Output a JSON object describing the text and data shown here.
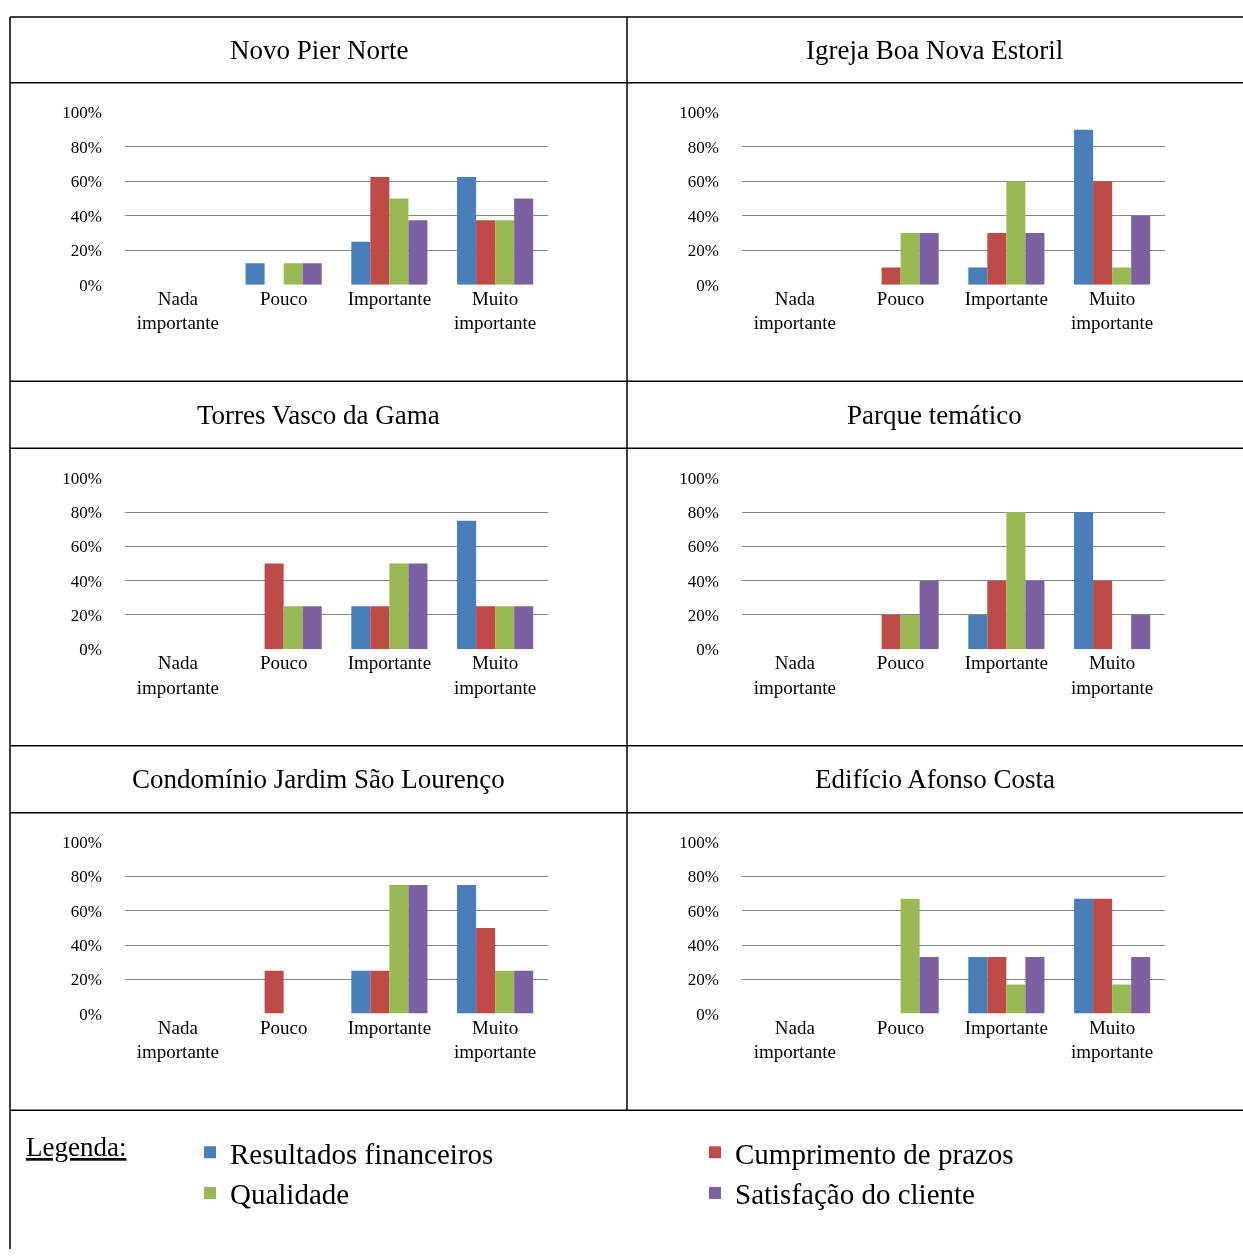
{
  "chart_data": [
    {
      "type": "bar",
      "title": "Novo Pier Norte",
      "categories": [
        "Nada\nimportante",
        "Pouco",
        "Importante",
        "Muito\nimportante"
      ],
      "ylim": [
        0,
        100
      ],
      "yticks": [
        {
          "value": 0,
          "label": "0%"
        },
        {
          "value": 20,
          "label": "20%"
        },
        {
          "value": 40,
          "label": "40%"
        },
        {
          "value": 60,
          "label": "60%"
        },
        {
          "value": 80,
          "label": "80%"
        },
        {
          "value": 100,
          "label": "100%"
        }
      ],
      "grid": "y",
      "legend": "bottom",
      "legend_title": "Legenda:",
      "series": [
        {
          "name": "Resultados financeiros",
          "color": "#4a7ebb",
          "values": [
            0,
            12.5,
            25,
            62.5
          ]
        },
        {
          "name": "Cumprimento de prazos",
          "color": "#be4b48",
          "values": [
            0,
            0,
            62.5,
            37.5
          ]
        },
        {
          "name": "Qualidade",
          "color": "#98b954",
          "values": [
            0,
            12.5,
            50,
            37.5
          ]
        },
        {
          "name": "Satisfação do cliente",
          "color": "#7d60a0",
          "values": [
            0,
            12.5,
            37.5,
            50
          ]
        }
      ]
    },
    {
      "type": "bar",
      "title": "Igreja Boa Nova Estoril",
      "categories": [
        "Nada\nimportante",
        "Pouco",
        "Importante",
        "Muito\nimportante"
      ],
      "ylim": [
        0,
        100
      ],
      "yticks": [
        {
          "value": 0,
          "label": "0%"
        },
        {
          "value": 20,
          "label": "20%"
        },
        {
          "value": 40,
          "label": "40%"
        },
        {
          "value": 60,
          "label": "60%"
        },
        {
          "value": 80,
          "label": "80%"
        },
        {
          "value": 100,
          "label": "100%"
        }
      ],
      "grid": "y",
      "legend": "bottom",
      "series": [
        {
          "name": "Resultados financeiros",
          "color": "#4a7ebb",
          "values": [
            0,
            0,
            10,
            90
          ]
        },
        {
          "name": "Cumprimento de prazos",
          "color": "#be4b48",
          "values": [
            0,
            10,
            30,
            60
          ]
        },
        {
          "name": "Qualidade",
          "color": "#98b954",
          "values": [
            0,
            30,
            60,
            10
          ]
        },
        {
          "name": "Satisfação do cliente",
          "color": "#7d60a0",
          "values": [
            0,
            30,
            30,
            40
          ]
        }
      ]
    },
    {
      "type": "bar",
      "title": "Torres Vasco da Gama",
      "categories": [
        "Nada\nimportante",
        "Pouco",
        "Importante",
        "Muito\nimportante"
      ],
      "ylim": [
        0,
        100
      ],
      "yticks": [
        {
          "value": 0,
          "label": "0%"
        },
        {
          "value": 20,
          "label": "20%"
        },
        {
          "value": 40,
          "label": "40%"
        },
        {
          "value": 60,
          "label": "60%"
        },
        {
          "value": 80,
          "label": "80%"
        },
        {
          "value": 100,
          "label": "100%"
        }
      ],
      "grid": "y",
      "legend": "bottom",
      "series": [
        {
          "name": "Resultados financeiros",
          "color": "#4a7ebb",
          "values": [
            0,
            0,
            25,
            75
          ]
        },
        {
          "name": "Cumprimento de prazos",
          "color": "#be4b48",
          "values": [
            0,
            50,
            25,
            25
          ]
        },
        {
          "name": "Qualidade",
          "color": "#98b954",
          "values": [
            0,
            25,
            50,
            25
          ]
        },
        {
          "name": "Satisfação do cliente",
          "color": "#7d60a0",
          "values": [
            0,
            25,
            50,
            25
          ]
        }
      ]
    },
    {
      "type": "bar",
      "title": "Parque temático",
      "categories": [
        "Nada\nimportante",
        "Pouco",
        "Importante",
        "Muito\nimportante"
      ],
      "ylim": [
        0,
        100
      ],
      "yticks": [
        {
          "value": 0,
          "label": "0%"
        },
        {
          "value": 20,
          "label": "20%"
        },
        {
          "value": 40,
          "label": "40%"
        },
        {
          "value": 60,
          "label": "60%"
        },
        {
          "value": 80,
          "label": "80%"
        },
        {
          "value": 100,
          "label": "100%"
        }
      ],
      "grid": "y",
      "legend": "bottom",
      "series": [
        {
          "name": "Resultados financeiros",
          "color": "#4a7ebb",
          "values": [
            0,
            0,
            20,
            80
          ]
        },
        {
          "name": "Cumprimento de prazos",
          "color": "#be4b48",
          "values": [
            0,
            20,
            40,
            40
          ]
        },
        {
          "name": "Qualidade",
          "color": "#98b954",
          "values": [
            0,
            20,
            80,
            0
          ]
        },
        {
          "name": "Satisfação do cliente",
          "color": "#7d60a0",
          "values": [
            0,
            40,
            40,
            20
          ]
        }
      ]
    },
    {
      "type": "bar",
      "title": "Condomínio Jardim São Lourenço",
      "categories": [
        "Nada\nimportante",
        "Pouco",
        "Importante",
        "Muito\nimportante"
      ],
      "ylim": [
        0,
        100
      ],
      "yticks": [
        {
          "value": 0,
          "label": "0%"
        },
        {
          "value": 20,
          "label": "20%"
        },
        {
          "value": 40,
          "label": "40%"
        },
        {
          "value": 60,
          "label": "60%"
        },
        {
          "value": 80,
          "label": "80%"
        },
        {
          "value": 100,
          "label": "100%"
        }
      ],
      "grid": "y",
      "legend": "bottom",
      "series": [
        {
          "name": "Resultados financeiros",
          "color": "#4a7ebb",
          "values": [
            0,
            0,
            25,
            75
          ]
        },
        {
          "name": "Cumprimento de prazos",
          "color": "#be4b48",
          "values": [
            0,
            25,
            25,
            50
          ]
        },
        {
          "name": "Qualidade",
          "color": "#98b954",
          "values": [
            0,
            0,
            75,
            25
          ]
        },
        {
          "name": "Satisfação do cliente",
          "color": "#7d60a0",
          "values": [
            0,
            0,
            75,
            25
          ]
        }
      ]
    },
    {
      "type": "bar",
      "title": "Edifício Afonso Costa",
      "categories": [
        "Nada\nimportante",
        "Pouco",
        "Importante",
        "Muito\nimportante"
      ],
      "ylim": [
        0,
        100
      ],
      "yticks": [
        {
          "value": 0,
          "label": "0%"
        },
        {
          "value": 20,
          "label": "20%"
        },
        {
          "value": 40,
          "label": "40%"
        },
        {
          "value": 60,
          "label": "60%"
        },
        {
          "value": 80,
          "label": "80%"
        },
        {
          "value": 100,
          "label": "100%"
        }
      ],
      "grid": "y",
      "legend": "bottom",
      "series": [
        {
          "name": "Resultados financeiros",
          "color": "#4a7ebb",
          "values": [
            0,
            0,
            33,
            67
          ]
        },
        {
          "name": "Cumprimento de prazos",
          "color": "#be4b48",
          "values": [
            0,
            0,
            33,
            67
          ]
        },
        {
          "name": "Qualidade",
          "color": "#98b954",
          "values": [
            0,
            67,
            17,
            17
          ]
        },
        {
          "name": "Satisfação do cliente",
          "color": "#7d60a0",
          "values": [
            0,
            33,
            33,
            33
          ]
        }
      ]
    }
  ]
}
